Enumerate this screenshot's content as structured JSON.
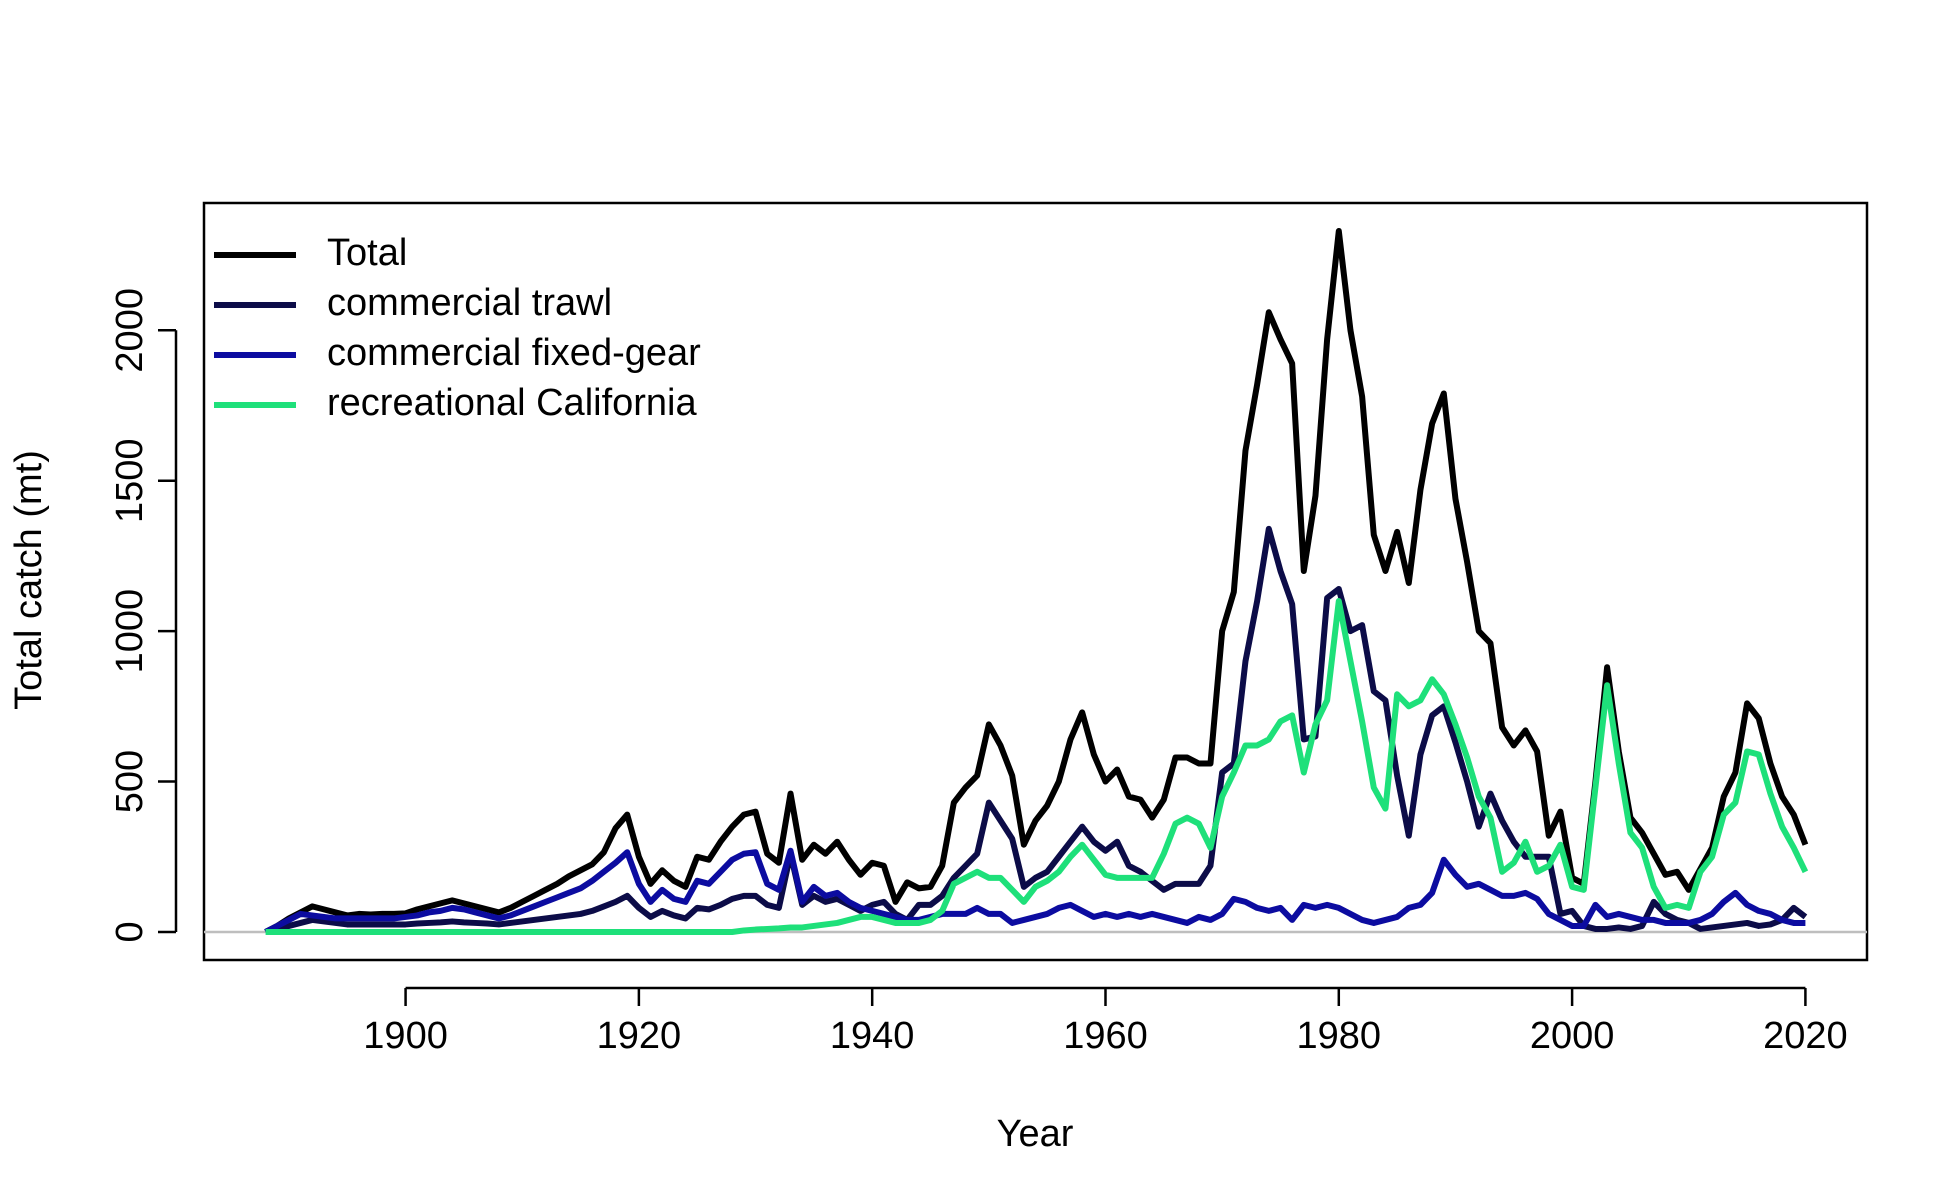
{
  "chart_data": {
    "type": "line",
    "x_label": "Year",
    "y_label": "Total catch (mt)",
    "x": [
      1888,
      1889,
      1890,
      1891,
      1892,
      1893,
      1894,
      1895,
      1896,
      1897,
      1898,
      1899,
      1900,
      1901,
      1902,
      1903,
      1904,
      1905,
      1906,
      1907,
      1908,
      1909,
      1910,
      1911,
      1912,
      1913,
      1914,
      1915,
      1916,
      1917,
      1918,
      1919,
      1920,
      1921,
      1922,
      1923,
      1924,
      1925,
      1926,
      1927,
      1928,
      1929,
      1930,
      1931,
      1932,
      1933,
      1934,
      1935,
      1936,
      1937,
      1938,
      1939,
      1940,
      1941,
      1942,
      1943,
      1944,
      1945,
      1946,
      1947,
      1948,
      1949,
      1950,
      1951,
      1952,
      1953,
      1954,
      1955,
      1956,
      1957,
      1958,
      1959,
      1960,
      1961,
      1962,
      1963,
      1964,
      1965,
      1966,
      1967,
      1968,
      1969,
      1970,
      1971,
      1972,
      1973,
      1974,
      1975,
      1976,
      1977,
      1978,
      1979,
      1980,
      1981,
      1982,
      1983,
      1984,
      1985,
      1986,
      1987,
      1988,
      1989,
      1990,
      1991,
      1992,
      1993,
      1994,
      1995,
      1996,
      1997,
      1998,
      1999,
      2000,
      2001,
      2002,
      2003,
      2004,
      2005,
      2006,
      2007,
      2008,
      2009,
      2010,
      2011,
      2012,
      2013,
      2014,
      2015,
      2016,
      2017,
      2018,
      2019,
      2020
    ],
    "series": [
      {
        "name": "Total",
        "color": "#000000",
        "values": [
          0,
          20,
          45,
          65,
          85,
          75,
          65,
          55,
          60,
          58,
          60,
          60,
          62,
          75,
          85,
          95,
          105,
          95,
          85,
          75,
          65,
          80,
          100,
          120,
          140,
          160,
          185,
          205,
          225,
          265,
          345,
          390,
          250,
          160,
          205,
          170,
          150,
          250,
          240,
          300,
          350,
          390,
          400,
          260,
          230,
          460,
          240,
          290,
          260,
          300,
          240,
          190,
          230,
          220,
          100,
          165,
          145,
          150,
          220,
          430,
          480,
          520,
          690,
          620,
          520,
          290,
          370,
          420,
          500,
          640,
          730,
          590,
          500,
          540,
          450,
          440,
          380,
          440,
          580,
          580,
          560,
          560,
          1000,
          1130,
          1600,
          1820,
          2060,
          1970,
          1890,
          1200,
          1450,
          1970,
          2330,
          2000,
          1780,
          1320,
          1200,
          1330,
          1160,
          1470,
          1690,
          1790,
          1440,
          1230,
          1000,
          960,
          680,
          620,
          670,
          600,
          320,
          400,
          180,
          160,
          500,
          880,
          600,
          380,
          330,
          260,
          190,
          200,
          140,
          210,
          280,
          450,
          530,
          760,
          710,
          560,
          450,
          390,
          290
        ]
      },
      {
        "name": "commercial trawl",
        "color": "#0c0c48",
        "values": [
          0,
          10,
          20,
          30,
          40,
          35,
          30,
          25,
          25,
          25,
          25,
          25,
          25,
          28,
          30,
          32,
          35,
          32,
          30,
          28,
          25,
          30,
          35,
          40,
          45,
          50,
          55,
          60,
          70,
          85,
          100,
          120,
          80,
          50,
          70,
          55,
          45,
          80,
          75,
          90,
          110,
          120,
          120,
          90,
          80,
          260,
          90,
          120,
          100,
          110,
          90,
          70,
          90,
          100,
          60,
          40,
          90,
          90,
          120,
          180,
          220,
          260,
          430,
          370,
          310,
          150,
          180,
          200,
          250,
          300,
          350,
          300,
          270,
          300,
          220,
          200,
          170,
          140,
          160,
          160,
          160,
          220,
          530,
          560,
          900,
          1100,
          1340,
          1200,
          1090,
          640,
          650,
          1110,
          1140,
          1000,
          1020,
          800,
          770,
          520,
          320,
          590,
          720,
          750,
          630,
          500,
          350,
          460,
          370,
          300,
          250,
          250,
          250,
          60,
          70,
          20,
          10,
          10,
          15,
          10,
          20,
          100,
          60,
          40,
          30,
          10,
          15,
          20,
          25,
          30,
          20,
          25,
          40,
          80,
          50
        ]
      },
      {
        "name": "commercial fixed-gear",
        "color": "#0c0ca0",
        "values": [
          0,
          20,
          40,
          60,
          55,
          50,
          45,
          45,
          45,
          45,
          45,
          45,
          50,
          55,
          65,
          70,
          80,
          75,
          65,
          55,
          45,
          55,
          70,
          85,
          100,
          115,
          130,
          145,
          170,
          200,
          230,
          265,
          160,
          100,
          140,
          110,
          100,
          170,
          160,
          200,
          240,
          260,
          265,
          160,
          140,
          270,
          100,
          150,
          120,
          130,
          100,
          80,
          70,
          60,
          50,
          40,
          40,
          50,
          60,
          60,
          60,
          80,
          60,
          60,
          30,
          40,
          50,
          60,
          80,
          90,
          70,
          50,
          60,
          50,
          60,
          50,
          60,
          50,
          40,
          30,
          50,
          40,
          60,
          110,
          100,
          80,
          70,
          80,
          40,
          90,
          80,
          90,
          80,
          60,
          40,
          30,
          40,
          50,
          80,
          90,
          130,
          240,
          190,
          150,
          160,
          140,
          120,
          120,
          130,
          110,
          60,
          40,
          20,
          20,
          90,
          50,
          60,
          50,
          40,
          40,
          30,
          30,
          30,
          40,
          60,
          100,
          130,
          90,
          70,
          60,
          40,
          30,
          30
        ]
      },
      {
        "name": "recreational California",
        "color": "#1ee07a",
        "values": [
          0,
          0,
          0,
          0,
          0,
          0,
          0,
          0,
          0,
          0,
          0,
          0,
          0,
          0,
          0,
          0,
          0,
          0,
          0,
          0,
          0,
          0,
          0,
          0,
          0,
          0,
          0,
          0,
          0,
          0,
          0,
          0,
          0,
          0,
          0,
          0,
          0,
          0,
          0,
          0,
          0,
          5,
          8,
          10,
          12,
          15,
          15,
          20,
          25,
          30,
          40,
          50,
          50,
          40,
          30,
          30,
          30,
          40,
          70,
          160,
          180,
          200,
          180,
          180,
          140,
          100,
          150,
          170,
          200,
          250,
          290,
          240,
          190,
          180,
          180,
          180,
          180,
          260,
          360,
          380,
          360,
          280,
          450,
          530,
          620,
          620,
          640,
          700,
          720,
          530,
          690,
          770,
          1100,
          900,
          700,
          480,
          410,
          790,
          750,
          770,
          840,
          790,
          690,
          580,
          450,
          380,
          200,
          230,
          300,
          200,
          220,
          290,
          150,
          140,
          480,
          820,
          560,
          330,
          280,
          150,
          80,
          90,
          80,
          200,
          250,
          390,
          430,
          600,
          590,
          460,
          350,
          280,
          200
        ]
      }
    ],
    "xlim": [
      1882.72,
      2025.28
    ],
    "xticks": [
      1900,
      1920,
      1940,
      1960,
      1980,
      2000,
      2020
    ],
    "ylim": [
      -93.2,
      2423.2
    ],
    "yticks": [
      0,
      500,
      1000,
      1500,
      2000
    ],
    "legend": "top-left",
    "zero_line_color": "#bebebe"
  }
}
